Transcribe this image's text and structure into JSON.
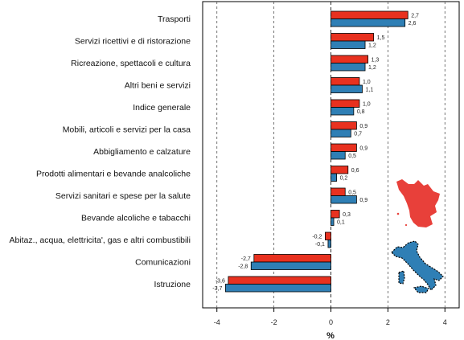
{
  "chart_data": {
    "type": "bar",
    "orientation": "horizontal",
    "categories": [
      "Trasporti",
      "Servizi ricettivi e di ristorazione",
      "Ricreazione, spettacoli e cultura",
      "Altri beni e servizi",
      "Indice generale",
      "Mobili, articoli e servizi per la casa",
      "Abbigliamento e calzature",
      "Prodotti alimentari e bevande analcoliche",
      "Servizi sanitari e spese per la salute",
      "Bevande alcoliche e tabacchi",
      "Abitaz., acqua, elettricita', gas e altri combustibili",
      "Comunicazioni",
      "Istruzione"
    ],
    "series": [
      {
        "color": "#e8311f",
        "values": [
          2.7,
          1.5,
          1.3,
          1.0,
          1.0,
          0.9,
          0.9,
          0.6,
          0.5,
          0.3,
          -0.2,
          -2.7,
          -3.6
        ],
        "labels": [
          "2,7",
          "1,5",
          "1,3",
          "1,0",
          "1,0",
          "0,9",
          "0,9",
          "0,6",
          "0,5",
          "0,3",
          "-0,2",
          "-2,7",
          "-3,6"
        ]
      },
      {
        "color": "#2f7fb5",
        "values": [
          2.6,
          1.2,
          1.2,
          1.1,
          0.8,
          0.7,
          0.5,
          0.2,
          0.9,
          0.1,
          -0.1,
          -2.8,
          -3.7
        ],
        "labels": [
          "2,6",
          "1,2",
          "1,2",
          "1,1",
          "0,8",
          "0,7",
          "0,5",
          "0,2",
          "0,9",
          "0,1",
          "-0,1",
          "-2,8",
          "-3,7"
        ]
      }
    ],
    "xlabel": "%",
    "xlim": [
      -4.5,
      4.5
    ],
    "xticks": [
      -4,
      -2,
      0,
      2,
      4
    ],
    "xtick_labels": [
      "-4",
      "-2",
      "0",
      "2",
      "4"
    ],
    "grid": "vertical dashed"
  },
  "map_icons": {
    "region": "toscana-map-icon",
    "region_color": "#e8403a",
    "country": "italia-map-icon",
    "country_color": "#2f7fb5"
  }
}
